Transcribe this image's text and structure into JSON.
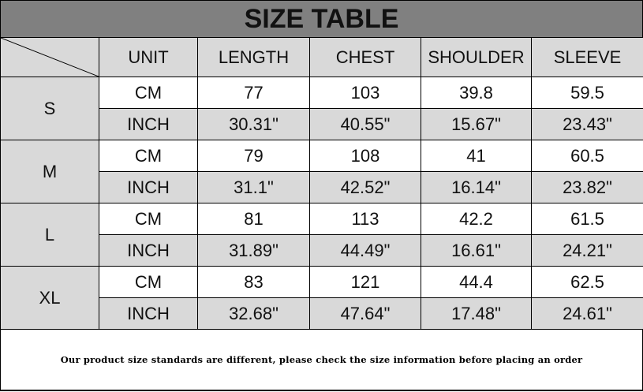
{
  "title": "SIZE TABLE",
  "columns": [
    "UNIT",
    "LENGTH",
    "CHEST",
    "SHOULDER",
    "SLEEVE"
  ],
  "sizes": [
    {
      "size": "S",
      "rows": [
        {
          "unit": "CM",
          "values": [
            "77",
            "103",
            "39.8",
            "59.5"
          ]
        },
        {
          "unit": "INCH",
          "values": [
            "30.31\"",
            "40.55\"",
            "15.67\"",
            "23.43\""
          ]
        }
      ]
    },
    {
      "size": "M",
      "rows": [
        {
          "unit": "CM",
          "values": [
            "79",
            "108",
            "41",
            "60.5"
          ]
        },
        {
          "unit": "INCH",
          "values": [
            "31.1\"",
            "42.52\"",
            "16.14\"",
            "23.82\""
          ]
        }
      ]
    },
    {
      "size": "L",
      "rows": [
        {
          "unit": "CM",
          "values": [
            "81",
            "113",
            "42.2",
            "61.5"
          ]
        },
        {
          "unit": "INCH",
          "values": [
            "31.89\"",
            "44.49\"",
            "16.61\"",
            "24.21\""
          ]
        }
      ]
    },
    {
      "size": "XL",
      "rows": [
        {
          "unit": "CM",
          "values": [
            "83",
            "121",
            "44.4",
            "62.5"
          ]
        },
        {
          "unit": "INCH",
          "values": [
            "32.68\"",
            "47.64\"",
            "17.48\"",
            "24.61\""
          ]
        }
      ]
    }
  ],
  "footer": "Our product size standards are different, please check the size information before placing an order",
  "colors": {
    "title_bg": "#808080",
    "cell_gray": "#d9d9d9",
    "cell_white": "#ffffff"
  }
}
